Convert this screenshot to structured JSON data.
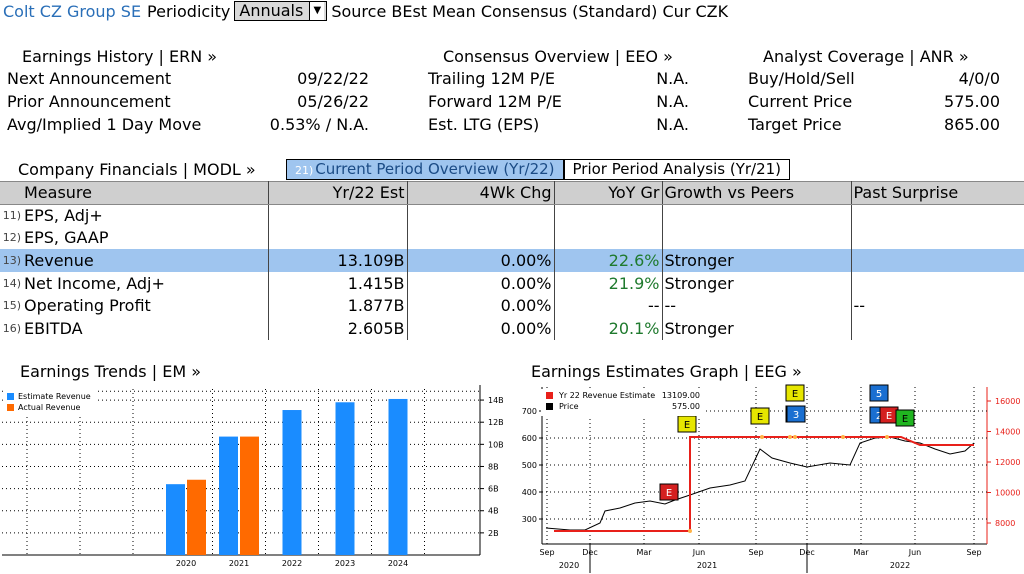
{
  "top": {
    "company": "Colt CZ Group SE",
    "periodicity_label": "Periodicity",
    "periodicity_value": "Annuals",
    "source_text": "Source BEst Mean Consensus (Standard) Cur CZK"
  },
  "earnings_history": {
    "title": "Earnings History | ERN »",
    "rows": [
      {
        "label": "Next Announcement",
        "value": "09/22/22"
      },
      {
        "label": "Prior Announcement",
        "value": "05/26/22"
      },
      {
        "label": "Avg/Implied 1 Day Move",
        "value": "0.53% / N.A."
      }
    ]
  },
  "consensus": {
    "title": "Consensus Overview | EEO »",
    "rows": [
      {
        "label": "Trailing 12M P/E",
        "value": "N.A."
      },
      {
        "label": "Forward 12M P/E",
        "value": "N.A."
      },
      {
        "label": "Est. LTG (EPS)",
        "value": "N.A."
      }
    ]
  },
  "analyst": {
    "title": "Analyst Coverage | ANR »",
    "rows": [
      {
        "label": "Buy/Hold/Sell",
        "value": "4/0/0"
      },
      {
        "label": "Current Price",
        "value": "575.00"
      },
      {
        "label": "Target Price",
        "value": "865.00"
      }
    ]
  },
  "financials": {
    "title": "Company Financials | MODL »",
    "tab_active_num": "21)",
    "tab_active": "Current Period Overview (Yr/22)",
    "tab_other": "Prior Period Analysis (Yr/21)",
    "headers": [
      "Measure",
      "Yr/22 Est",
      "4Wk Chg",
      "YoY Gr",
      "Growth vs Peers",
      "Past Surprise"
    ],
    "rows": [
      {
        "num": "11)",
        "measure": "EPS, Adj+",
        "est": "",
        "chg": "",
        "yoy": "",
        "peers": "",
        "surprise": ""
      },
      {
        "num": "12)",
        "measure": "EPS, GAAP",
        "est": "",
        "chg": "",
        "yoy": "",
        "peers": "",
        "surprise": ""
      },
      {
        "num": "13)",
        "measure": "Revenue",
        "est": "13.109B",
        "chg": "0.00%",
        "yoy": "22.6%",
        "peers": "Stronger",
        "surprise": ""
      },
      {
        "num": "14)",
        "measure": "Net Income, Adj+",
        "est": "1.415B",
        "chg": "0.00%",
        "yoy": "21.9%",
        "peers": "Stronger",
        "surprise": ""
      },
      {
        "num": "15)",
        "measure": "Operating Profit",
        "est": "1.877B",
        "chg": "0.00%",
        "yoy": "--",
        "peers": "--",
        "surprise": "--"
      },
      {
        "num": "16)",
        "measure": "EBITDA",
        "est": "2.605B",
        "chg": "0.00%",
        "yoy": "20.1%",
        "peers": "Stronger",
        "surprise": ""
      }
    ]
  },
  "trends": {
    "title": "Earnings Trends | EM »"
  },
  "estimates_graph": {
    "title": "Earnings Estimates Graph | EEG »"
  },
  "chart_data": [
    {
      "type": "bar",
      "categories": [
        "2020",
        "2021",
        "2022",
        "2023",
        "2024"
      ],
      "series": [
        {
          "name": "Estimate Revenue",
          "values": [
            6.4,
            10.7,
            13.1,
            13.8,
            14.1
          ],
          "color": "#1a8cff"
        },
        {
          "name": "Actual Revenue",
          "values": [
            6.8,
            10.7,
            null,
            null,
            null
          ],
          "color": "#ff6a00"
        }
      ],
      "ylim": [
        0,
        15
      ],
      "yticks": [
        "2B",
        "4B",
        "6B",
        "8B",
        "10B",
        "12B",
        "14B"
      ],
      "legend": "top-left"
    },
    {
      "type": "line",
      "series": [
        {
          "name": "Yr 22 Revenue Estimate",
          "last": "13109.00",
          "color": "#e8201a",
          "axis": "right"
        },
        {
          "name": "Price",
          "last": "575.00",
          "color": "#000000",
          "axis": "left"
        }
      ],
      "left_ticks": [
        "300",
        "400",
        "500",
        "600",
        "700"
      ],
      "right_ticks": [
        "8000",
        "10000",
        "12000",
        "14000",
        "16000"
      ],
      "x_ticks": [
        "Sep",
        "Dec",
        "Mar",
        "Jun",
        "Sep",
        "Dec",
        "Mar",
        "Jun",
        "Sep"
      ],
      "x_years": [
        "2020",
        "2021",
        "2022"
      ],
      "markers": [
        "E",
        "E",
        "E",
        "E",
        "E",
        "3",
        "5",
        "2",
        "E",
        "E"
      ]
    }
  ]
}
